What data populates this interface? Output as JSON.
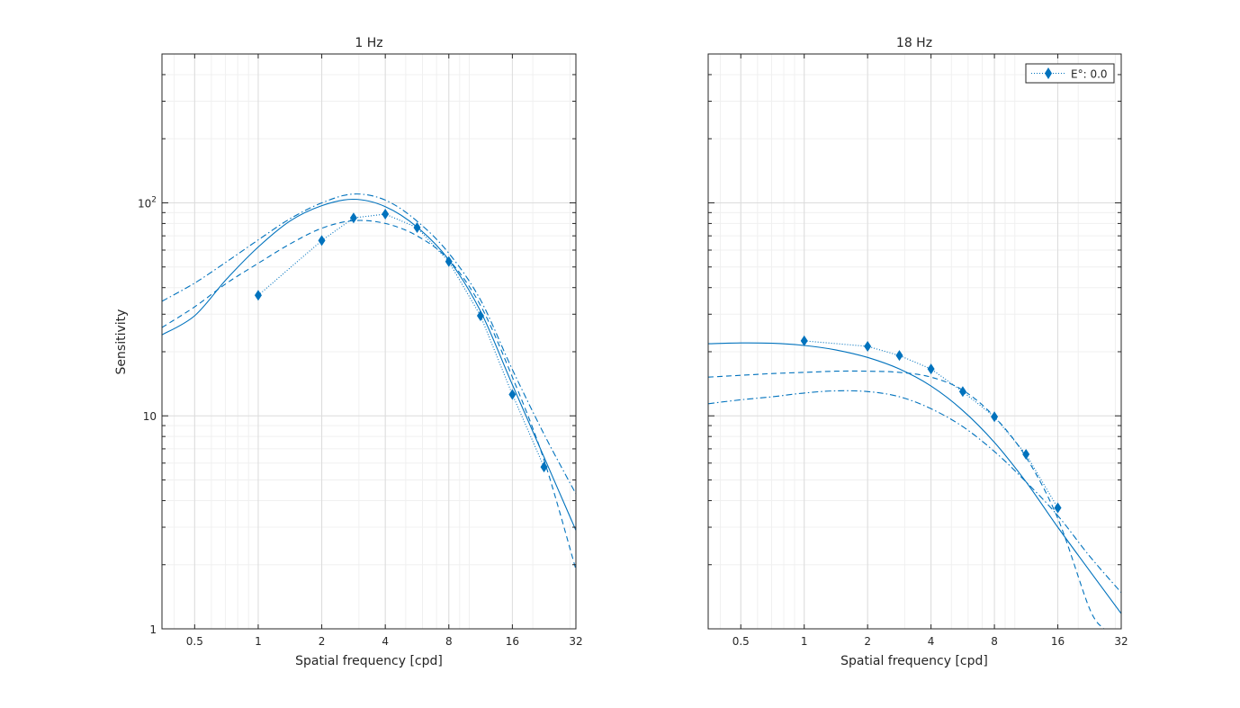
{
  "figure": {
    "ylabel": "Sensitivity",
    "legend_label": "E°: 0.0",
    "color": "#0072BD"
  },
  "chart_data": [
    {
      "type": "line",
      "title": "1 Hz",
      "xlabel": "Spatial frequency [cpd]",
      "ylabel": "Sensitivity",
      "xscale": "log2",
      "yscale": "log10",
      "xlim": [
        0.35,
        32
      ],
      "ylim": [
        1,
        500
      ],
      "xticks": [
        0.5,
        1,
        2,
        4,
        8,
        16,
        32
      ],
      "xticklabels": [
        "0.5",
        "1",
        "2",
        "4",
        "8",
        "16",
        "32"
      ],
      "yticks": [
        1,
        10,
        100
      ],
      "yticklabels": [
        "1",
        "10",
        "10^2"
      ],
      "grid": true,
      "legend": null,
      "series": [
        {
          "style": "dotted-diamond",
          "x": [
            1,
            2,
            2.83,
            4,
            5.66,
            8,
            11.3,
            16,
            22.6
          ],
          "y": [
            36.8,
            66.5,
            85,
            88.5,
            76.5,
            53,
            29.5,
            12.6,
            5.75
          ]
        },
        {
          "style": "solid",
          "x": [
            0.35,
            0.5,
            0.71,
            1,
            1.41,
            2,
            2.83,
            4,
            5.66,
            8,
            11.3,
            16,
            22.6,
            32
          ],
          "y": [
            24,
            29.5,
            44,
            62,
            82,
            97,
            104,
            96,
            77,
            54,
            31,
            14,
            6.4,
            2.9
          ]
        },
        {
          "style": "dashed",
          "x": [
            0.35,
            0.5,
            0.71,
            1,
            1.41,
            2,
            2.83,
            4,
            5.66,
            8,
            11.3,
            16,
            22.6,
            32
          ],
          "y": [
            26,
            32.5,
            42,
            52,
            64,
            76,
            82.5,
            80,
            70,
            54,
            33,
            15.2,
            6.2,
            1.9
          ]
        },
        {
          "style": "dashdot",
          "x": [
            0.35,
            0.5,
            0.71,
            1,
            1.41,
            2,
            2.83,
            4,
            5.66,
            8,
            11.3,
            16,
            22.6,
            32
          ],
          "y": [
            34.5,
            42,
            53,
            67,
            84,
            100,
            110,
            103,
            82,
            58,
            35,
            16.5,
            8.2,
            4.3
          ]
        }
      ]
    },
    {
      "type": "line",
      "title": "18 Hz",
      "xlabel": "Spatial frequency [cpd]",
      "ylabel": "",
      "xscale": "log2",
      "yscale": "log10",
      "xlim": [
        0.35,
        32
      ],
      "ylim": [
        1,
        500
      ],
      "xticks": [
        0.5,
        1,
        2,
        4,
        8,
        16,
        32
      ],
      "xticklabels": [
        "0.5",
        "1",
        "2",
        "4",
        "8",
        "16",
        "32"
      ],
      "yticks": [
        1,
        10,
        100
      ],
      "grid": true,
      "legend": "top-right",
      "series": [
        {
          "name": "E°: 0.0",
          "style": "dotted-diamond",
          "x": [
            1,
            2,
            2.83,
            4,
            5.66,
            8,
            11.3,
            16
          ],
          "y": [
            22.5,
            21.2,
            19.2,
            16.6,
            13,
            9.9,
            6.6,
            3.7
          ]
        },
        {
          "style": "solid",
          "x": [
            0.35,
            0.5,
            0.71,
            1,
            1.41,
            2,
            2.83,
            4,
            5.66,
            8,
            11.3,
            16,
            22.6,
            32
          ],
          "y": [
            21.8,
            22,
            21.9,
            21.4,
            20.4,
            18.8,
            16.6,
            13.8,
            10.6,
            7.5,
            4.9,
            3.0,
            1.88,
            1.18
          ]
        },
        {
          "style": "dashed",
          "x": [
            0.35,
            0.5,
            0.71,
            1,
            1.41,
            2,
            2.83,
            4,
            5.66,
            8,
            11.3,
            16,
            22.6,
            26.5
          ],
          "y": [
            15.2,
            15.5,
            15.8,
            16,
            16.2,
            16.2,
            16,
            15.2,
            13.2,
            9.9,
            6.4,
            3.3,
            1.25,
            1.0
          ]
        },
        {
          "style": "dashdot",
          "x": [
            0.35,
            0.5,
            0.71,
            1,
            1.41,
            2,
            2.83,
            4,
            5.66,
            8,
            11.3,
            16,
            22.6,
            32
          ],
          "y": [
            11.4,
            11.9,
            12.3,
            12.8,
            13.1,
            13.0,
            12.3,
            10.8,
            8.9,
            6.8,
            4.9,
            3.4,
            2.2,
            1.48
          ]
        }
      ]
    }
  ]
}
